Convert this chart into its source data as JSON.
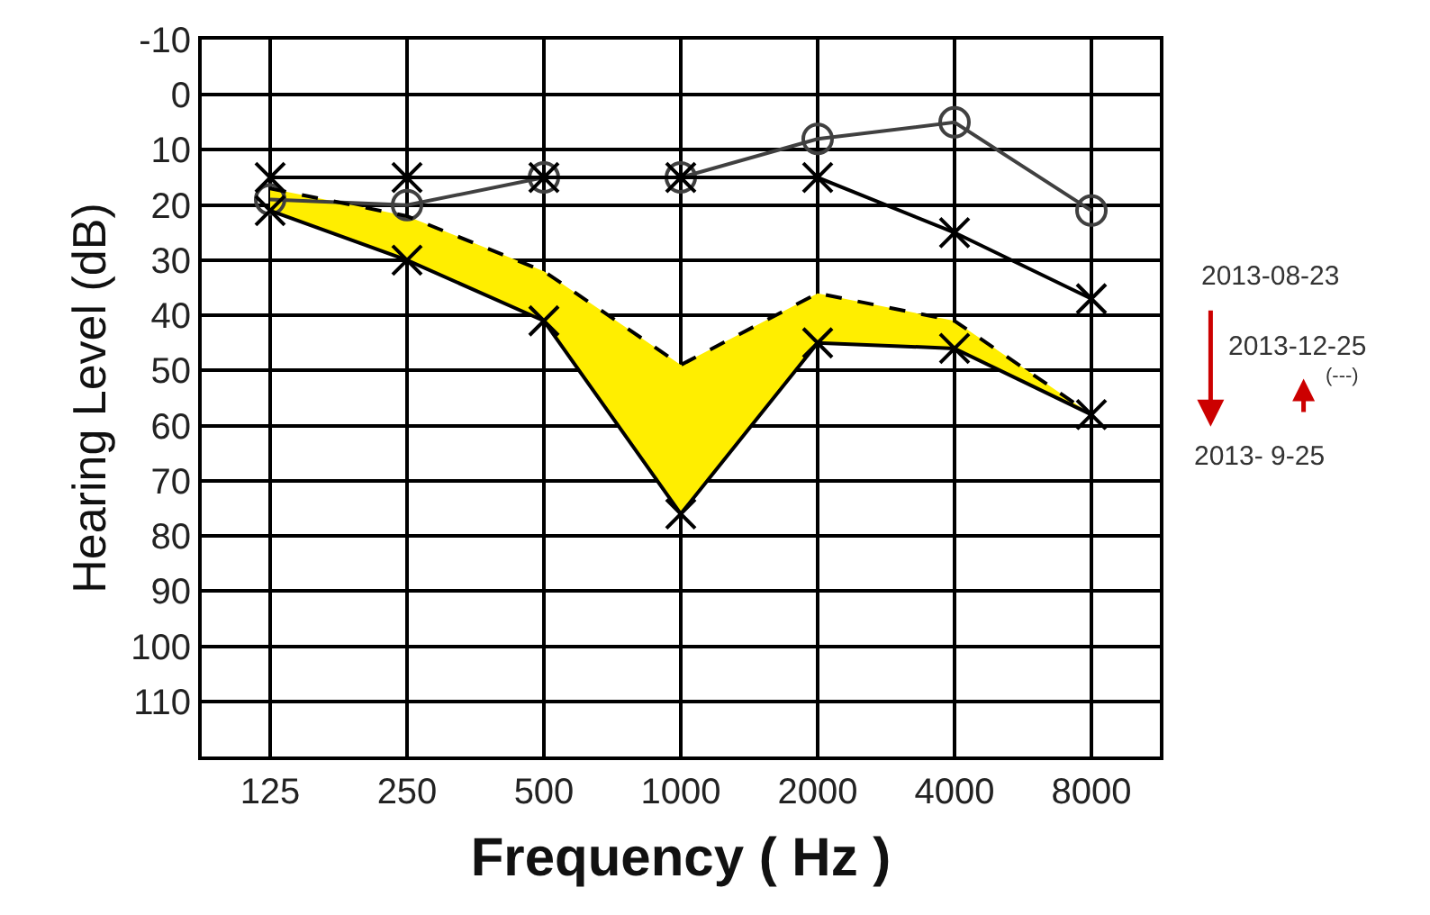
{
  "chart_data": {
    "type": "line",
    "xlabel": "Frequency ( Hz )",
    "ylabel": "Hearing Level (dB)",
    "categories": [
      "125",
      "250",
      "500",
      "1000",
      "2000",
      "4000",
      "8000"
    ],
    "ylim": [
      120,
      -10
    ],
    "yticks": [
      -10,
      0,
      10,
      20,
      30,
      40,
      50,
      60,
      70,
      80,
      90,
      100,
      110
    ],
    "grid": true,
    "series": [
      {
        "color": "#404040",
        "marker": "circle",
        "line_style": "solid",
        "values": [
          19,
          20,
          15,
          15,
          8,
          5,
          21
        ]
      },
      {
        "color": "#000000",
        "marker": "cross",
        "line_style": "solid",
        "values": [
          15,
          15,
          15,
          15,
          15,
          25,
          37
        ]
      },
      {
        "color": "#000000",
        "marker": "cross",
        "line_style": "solid",
        "values": [
          21,
          30,
          41,
          76,
          45,
          46,
          58
        ]
      },
      {
        "color": "#000000",
        "marker": "none",
        "line_style": "dashed",
        "values": [
          17,
          22,
          32,
          49,
          36,
          41,
          58
        ],
        "lower": [
          17,
          22,
          32,
          49,
          36,
          41,
          58
        ],
        "upper": [
          21,
          30,
          41,
          76,
          45,
          46,
          58
        ]
      }
    ],
    "annotations": [
      "2013-08-23",
      "2013-12-25",
      "(---)",
      "2013- 9-25"
    ]
  }
}
